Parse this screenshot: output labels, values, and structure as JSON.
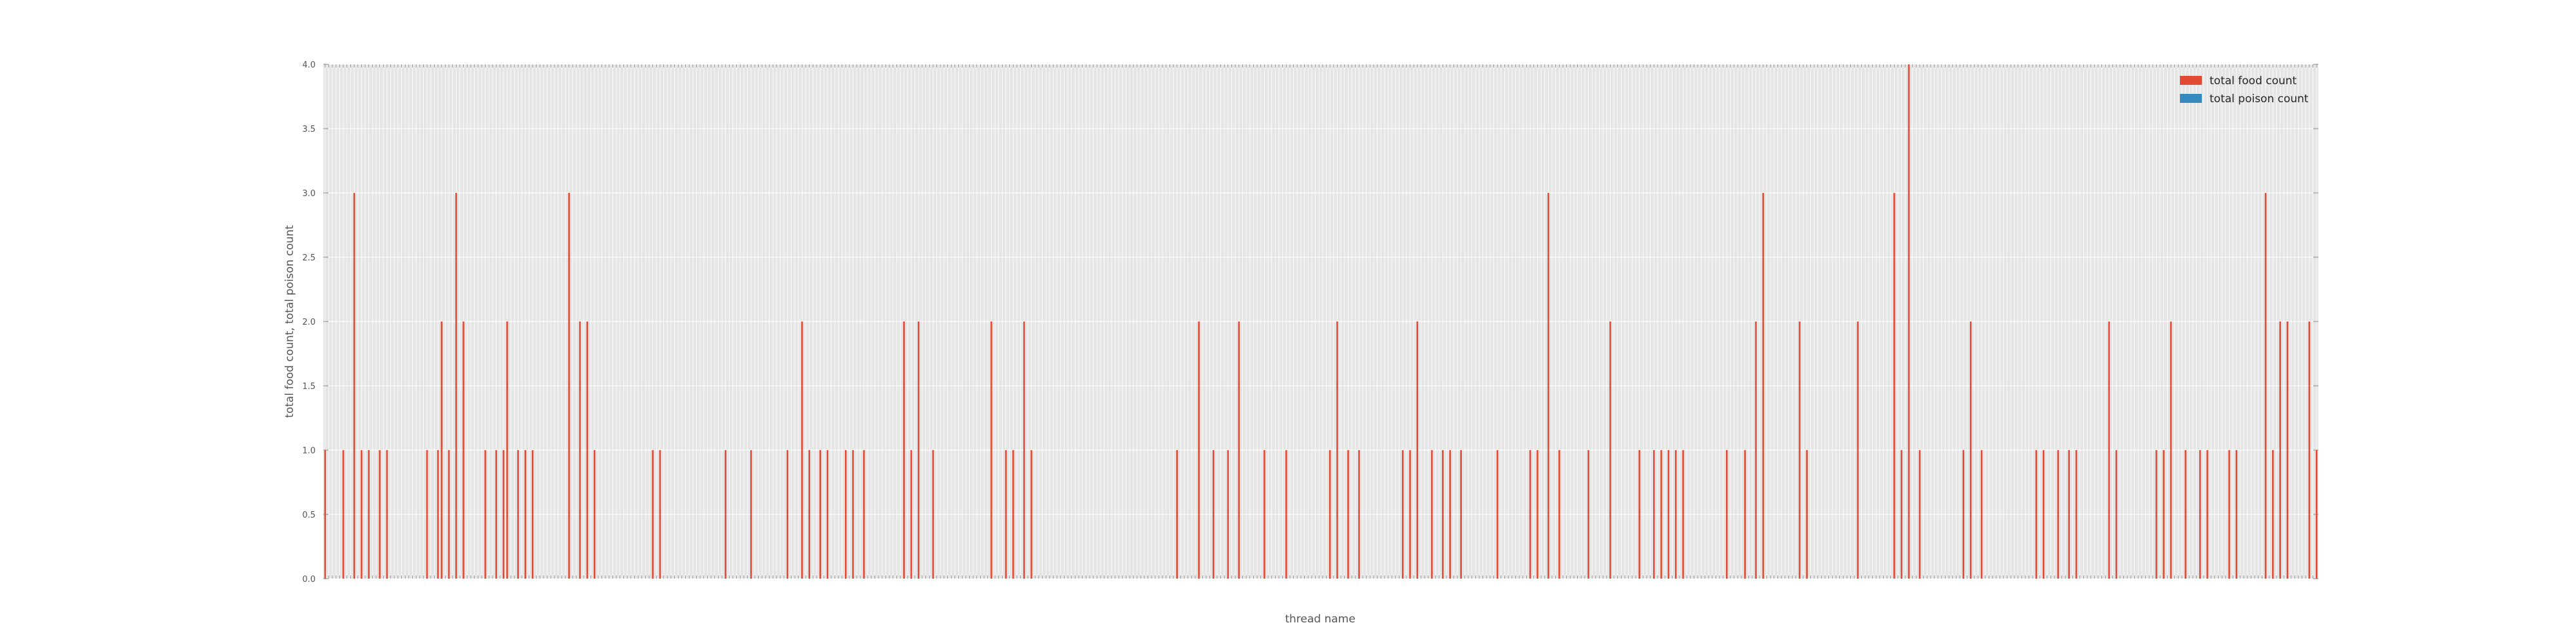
{
  "chart_data": {
    "type": "bar",
    "xlabel": "thread name",
    "ylabel": "total food count, total poison count",
    "ylim": [
      0,
      4.0
    ],
    "yticks": [
      "0.0",
      "0.5",
      "1.0",
      "1.5",
      "2.0",
      "2.5",
      "3.0",
      "3.5",
      "4.0"
    ],
    "grid": true,
    "legend_position": "top-right",
    "series": [
      {
        "name": "total food count",
        "color": "#E24A33",
        "values": [
          1,
          0,
          0,
          0,
          0,
          1,
          0,
          0,
          3,
          0,
          1,
          0,
          1,
          0,
          0,
          1,
          0,
          1,
          0,
          0,
          0,
          0,
          0,
          0,
          0,
          0,
          0,
          0,
          1,
          0,
          0,
          1,
          2,
          0,
          1,
          0,
          3,
          0,
          2,
          0,
          0,
          0,
          0,
          0,
          1,
          0,
          0,
          1,
          0,
          1,
          2,
          0,
          0,
          1,
          0,
          1,
          0,
          1,
          0,
          0,
          0,
          0,
          0,
          0,
          0,
          0,
          0,
          3,
          0,
          0,
          2,
          0,
          2,
          0,
          1,
          0,
          0,
          0,
          0,
          0,
          0,
          0,
          0,
          0,
          0,
          0,
          0,
          0,
          0,
          0,
          1,
          0,
          1,
          0,
          0,
          0,
          0,
          0,
          0,
          0,
          0,
          0,
          0,
          0,
          0,
          0,
          0,
          0,
          0,
          0,
          1,
          0,
          0,
          0,
          0,
          0,
          0,
          1,
          0,
          0,
          0,
          0,
          0,
          0,
          0,
          0,
          0,
          1,
          0,
          0,
          0,
          2,
          0,
          1,
          0,
          0,
          1,
          0,
          1,
          0,
          0,
          0,
          0,
          1,
          0,
          1,
          0,
          0,
          1,
          0,
          0,
          0,
          0,
          0,
          0,
          0,
          0,
          0,
          0,
          2,
          0,
          1,
          0,
          2,
          0,
          0,
          0,
          1,
          0,
          0,
          0,
          0,
          0,
          0,
          0,
          0,
          0,
          0,
          0,
          0,
          0,
          0,
          0,
          2,
          0,
          0,
          0,
          1,
          0,
          1,
          0,
          0,
          2,
          0,
          1,
          0,
          0,
          0,
          0,
          0,
          0,
          0,
          0,
          0,
          0,
          0,
          0,
          0,
          0,
          0,
          0,
          0,
          0,
          0,
          0,
          0,
          0,
          0,
          0,
          0,
          0,
          0,
          0,
          0,
          0,
          0,
          0,
          0,
          0,
          0,
          0,
          0,
          0,
          0,
          1,
          0,
          0,
          0,
          0,
          0,
          2,
          0,
          0,
          0,
          1,
          0,
          0,
          0,
          1,
          0,
          0,
          2,
          0,
          0,
          0,
          0,
          0,
          0,
          1,
          0,
          0,
          0,
          0,
          0,
          1,
          0,
          0,
          0,
          0,
          0,
          0,
          0,
          0,
          0,
          0,
          0,
          1,
          0,
          2,
          0,
          0,
          1,
          0,
          0,
          1,
          0,
          0,
          0,
          0,
          0,
          0,
          0,
          0,
          0,
          0,
          0,
          1,
          0,
          1,
          0,
          2,
          0,
          0,
          0,
          1,
          0,
          0,
          1,
          0,
          1,
          0,
          0,
          1,
          0,
          0,
          0,
          0,
          0,
          0,
          0,
          0,
          0,
          1,
          0,
          0,
          0,
          0,
          0,
          0,
          0,
          0,
          1,
          0,
          1,
          0,
          0,
          3,
          0,
          0,
          1,
          0,
          0,
          0,
          0,
          0,
          0,
          0,
          1,
          0,
          0,
          0,
          0,
          0,
          2,
          0,
          0,
          0,
          0,
          0,
          0,
          0,
          1,
          0,
          0,
          0,
          1,
          0,
          1,
          0,
          1,
          0,
          1,
          0,
          1,
          0,
          0,
          0,
          0,
          0,
          0,
          0,
          0,
          0,
          0,
          0,
          1,
          0,
          0,
          0,
          0,
          1,
          0,
          0,
          2,
          0,
          3,
          0,
          0,
          0,
          0,
          0,
          0,
          0,
          0,
          0,
          2,
          0,
          1,
          0,
          0,
          0,
          0,
          0,
          0,
          0,
          0,
          0,
          0,
          0,
          0,
          0,
          2,
          0,
          0,
          0,
          0,
          0,
          0,
          0,
          0,
          0,
          3,
          0,
          1,
          0,
          4,
          0,
          0,
          1,
          0,
          0,
          0,
          0,
          0,
          0,
          0,
          0,
          0,
          0,
          0,
          1,
          0,
          2,
          0,
          0,
          1,
          0,
          0,
          0,
          0,
          0,
          0,
          0,
          0,
          0,
          0,
          0,
          0,
          0,
          0,
          1,
          0,
          1,
          0,
          0,
          0,
          1,
          0,
          0,
          1,
          0,
          1,
          0,
          0,
          0,
          0,
          0,
          0,
          0,
          0,
          2,
          0,
          1,
          0,
          0,
          0,
          0,
          0,
          0,
          0,
          0,
          0,
          0,
          1,
          0,
          1,
          0,
          2,
          0,
          0,
          0,
          1,
          0,
          0,
          0,
          1,
          0,
          1,
          0,
          0,
          0,
          0,
          0,
          1,
          0,
          1,
          0,
          0,
          0,
          0,
          0,
          0,
          0,
          3,
          0,
          1,
          0,
          2,
          0,
          2,
          0,
          0,
          0,
          0,
          0,
          2,
          0,
          1
        ]
      },
      {
        "name": "total poison count",
        "color": "#348ABD",
        "values": []
      }
    ]
  }
}
